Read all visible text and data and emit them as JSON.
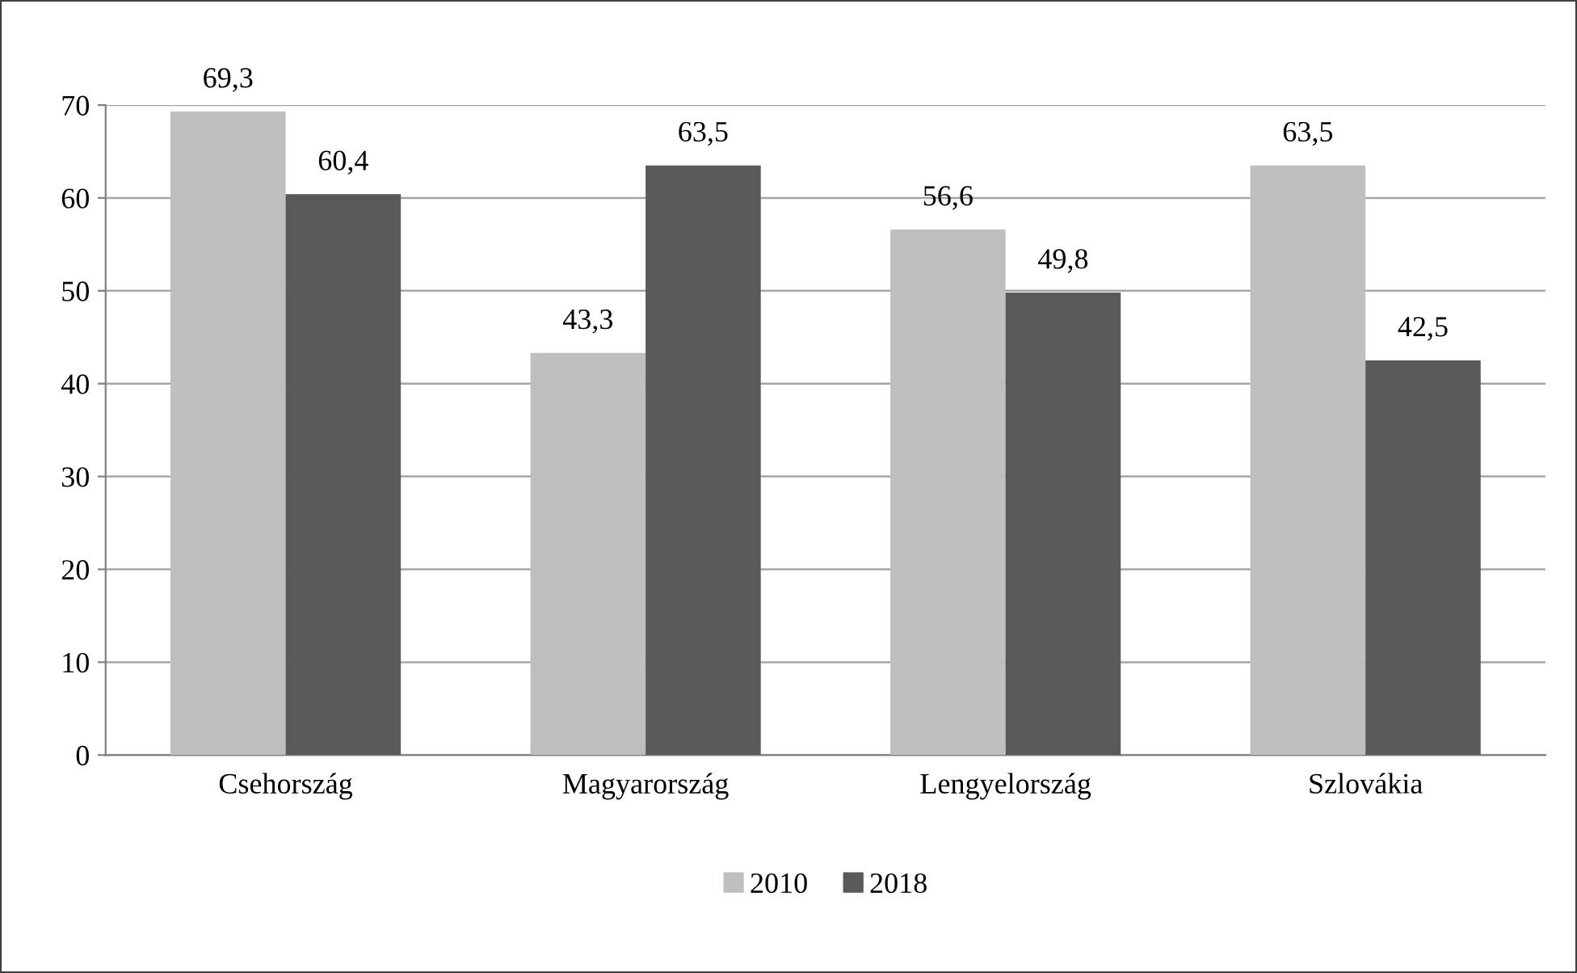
{
  "chart_data": {
    "type": "bar",
    "categories": [
      "Csehország",
      "Magyarország",
      "Lengyelország",
      "Szlovákia"
    ],
    "series": [
      {
        "name": "2010",
        "color": "#bfbfbf",
        "values": [
          69.3,
          43.3,
          56.6,
          63.5
        ],
        "value_labels": [
          "69,3",
          "43,3",
          "56,6",
          "63,5"
        ]
      },
      {
        "name": "2018",
        "color": "#595959",
        "values": [
          60.4,
          63.5,
          49.8,
          42.5
        ],
        "value_labels": [
          "60,4",
          "63,5",
          "49,8",
          "42,5"
        ]
      }
    ],
    "ylim": [
      0,
      70
    ],
    "yticks": [
      0,
      10,
      20,
      30,
      40,
      50,
      60,
      70
    ],
    "grid": "y",
    "legend": "bottom"
  }
}
